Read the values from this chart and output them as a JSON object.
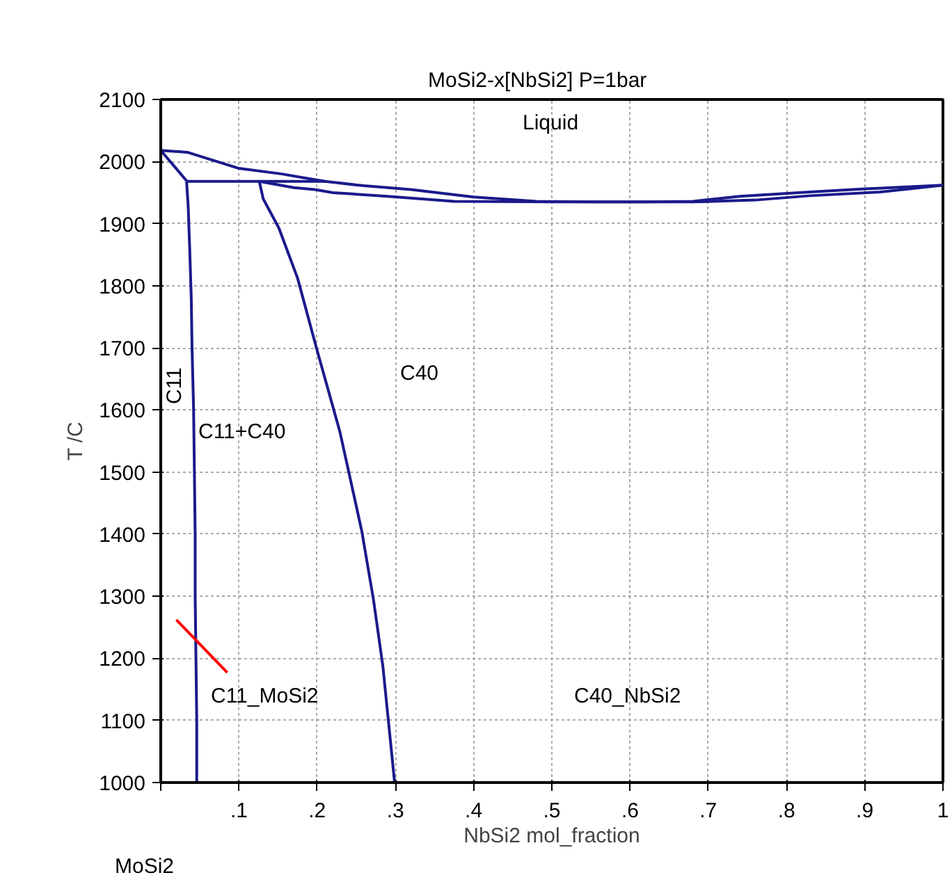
{
  "chart_data": {
    "type": "line",
    "title": "MoSi2-x[NbSi2]      P=1bar",
    "xlabel": "NbSi2 mol_fraction",
    "ylabel": "T /C",
    "x": [
      0,
      0.034,
      0.1,
      0.155,
      0.21,
      0.26,
      0.32,
      0.4,
      0.48,
      0.55,
      0.62,
      0.68,
      0.74,
      0.83,
      0.9,
      1.0
    ],
    "series": [
      {
        "color": "#1a1a8c",
        "values": [
          2018,
          2015,
          1989,
          1980,
          1968,
          1961,
          1955,
          1943,
          1936,
          1935,
          1935,
          1936,
          1944,
          1951,
          1956,
          1962
        ]
      },
      {
        "color": "#1a1a8c",
        "x": [
          0,
          0.033
        ],
        "values": [
          2018,
          1969
        ]
      },
      {
        "color": "#1a1a8c",
        "x": [
          0.033,
          0.21
        ],
        "values": [
          1968,
          1968
        ]
      },
      {
        "color": "#1a1a8c",
        "x": [
          0.126,
          0.17,
          0.197,
          0.22,
          0.29,
          0.375,
          0.5,
          0.6,
          0.68,
          0.76,
          0.83,
          0.92,
          1.0
        ],
        "values": [
          1968,
          1958,
          1955,
          1950,
          1944,
          1936,
          1935,
          1935,
          1935,
          1938,
          1945,
          1951,
          1962
        ]
      },
      {
        "color": "#1a1a8c",
        "x": [
          0.033,
          0.035,
          0.037,
          0.039,
          0.04,
          0.042,
          0.043,
          0.044,
          0.044,
          0.045,
          0.046,
          0.046
        ],
        "values": [
          1968,
          1930,
          1860,
          1780,
          1700,
          1600,
          1500,
          1400,
          1300,
          1200,
          1100,
          1000
        ]
      },
      {
        "color": "#1a1a8c",
        "x": [
          0.126,
          0.131,
          0.151,
          0.175,
          0.199,
          0.229,
          0.257,
          0.272,
          0.284,
          0.299
        ],
        "values": [
          1968,
          1940,
          1893,
          1812,
          1700,
          1565,
          1405,
          1294,
          1187,
          1000
        ]
      },
      {
        "color": "#ff0000",
        "x": [
          0.02,
          0.085
        ],
        "values": [
          1262,
          1177
        ]
      }
    ],
    "xlim": [
      0,
      1
    ],
    "ylim": [
      1000,
      2100
    ],
    "xticks": [
      {
        "value": 0,
        "label": null
      },
      {
        "value": 0.1,
        "label": ".1"
      },
      {
        "value": 0.2,
        "label": ".2"
      },
      {
        "value": 0.3,
        "label": ".3"
      },
      {
        "value": 0.4,
        "label": ".4"
      },
      {
        "value": 0.5,
        "label": ".5"
      },
      {
        "value": 0.6,
        "label": ".6"
      },
      {
        "value": 0.7,
        "label": ".7"
      },
      {
        "value": 0.8,
        "label": ".8"
      },
      {
        "value": 0.9,
        "label": ".9"
      },
      1
    ],
    "yticks": [
      1000,
      1100,
      1200,
      1300,
      1400,
      1500,
      1600,
      1700,
      1800,
      1900,
      2000,
      2100
    ],
    "grid": true,
    "marker": "none",
    "line_style": "solid",
    "annotations": [
      "Liquid",
      "C40",
      "C11+C40",
      "C11",
      "C11_MoSi2",
      "C40_NbSi2",
      "MoSi2"
    ]
  }
}
